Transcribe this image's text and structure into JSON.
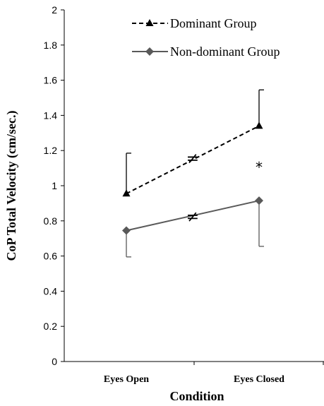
{
  "chart_data": {
    "type": "line",
    "title": "",
    "xlabel": "Condition",
    "ylabel": "CoP Total Velocity (cm/sec.)",
    "ylim": [
      0,
      2
    ],
    "yticks": [
      0,
      0.2,
      0.4,
      0.6,
      0.8,
      1,
      1.2,
      1.4,
      1.6,
      1.8,
      2
    ],
    "ytick_labels": [
      "0",
      "0.2",
      "0.4",
      "0.6",
      "0.8",
      "1",
      "1.2",
      "1.4",
      "1.6",
      "1.8",
      "2"
    ],
    "categories": [
      "Eyes Open",
      "Eyes Closed"
    ],
    "grid": false,
    "legend": "top-right",
    "series": [
      {
        "name": "Dominant Group",
        "values": [
          0.955,
          1.34
        ],
        "error_upper": [
          1.185,
          1.545
        ],
        "color": "#000000",
        "line_style": "dashed",
        "marker": "triangle"
      },
      {
        "name": "Non-dominant Group",
        "values": [
          0.745,
          0.915
        ],
        "error_lower": [
          0.595,
          0.655
        ],
        "color": "#595959",
        "line_style": "solid",
        "marker": "diamond"
      }
    ],
    "annotations": [
      {
        "text": "≠",
        "x": 0.5,
        "y": 1.15
      },
      {
        "text": "≠",
        "x": 0.5,
        "y": 0.82
      },
      {
        "text": "*",
        "x": 1,
        "y": 1.1
      }
    ]
  }
}
